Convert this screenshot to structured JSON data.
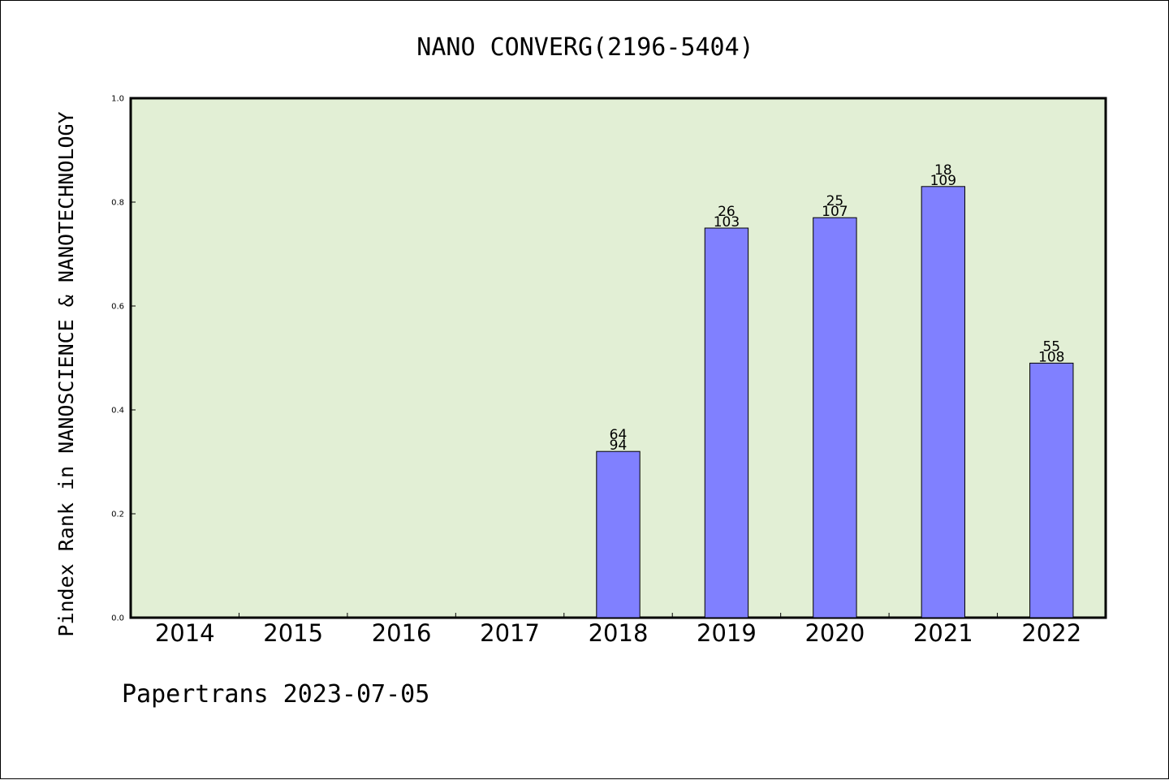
{
  "chart_data": {
    "type": "bar",
    "title": "NANO CONVERG(2196-5404)",
    "xlabel": "",
    "ylabel": "Pindex Rank in NANOSCIENCE & NANOTECHNOLOGY",
    "categories": [
      "2014",
      "2015",
      "2016",
      "2017",
      "2018",
      "2019",
      "2020",
      "2021",
      "2022"
    ],
    "values": [
      null,
      null,
      null,
      null,
      0.32,
      0.75,
      0.77,
      0.83,
      0.49
    ],
    "bar_labels_top": [
      "",
      "",
      "",
      "",
      "64",
      "26",
      "25",
      "18",
      "55"
    ],
    "bar_labels_bottom": [
      "",
      "",
      "",
      "",
      "94",
      "103",
      "107",
      "109",
      "108"
    ],
    "ylim": [
      0.0,
      1.0
    ],
    "yticks": [
      "0.0",
      "0.2",
      "0.4",
      "0.6",
      "0.8",
      "1.0"
    ],
    "grid": false,
    "legend": "none"
  },
  "footer": {
    "text": "Papertrans 2023-07-05"
  },
  "colors": {
    "plot_background": "#e2efd5",
    "bar_fill": "#8080ff",
    "bar_stroke": "#000000",
    "axis": "#000000",
    "page_background": "#ffffff"
  }
}
